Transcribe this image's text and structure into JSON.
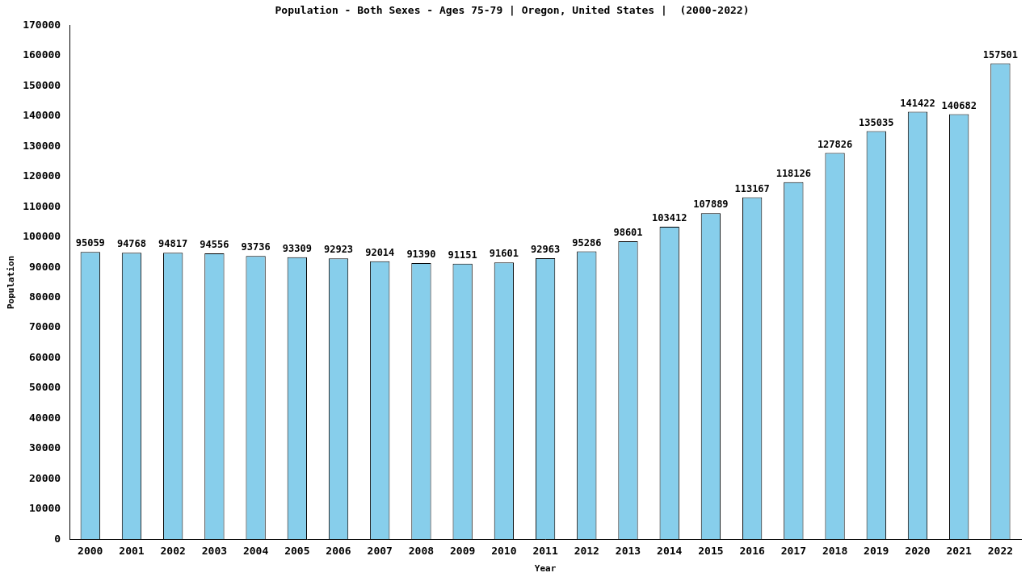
{
  "chart_data": {
    "type": "bar",
    "title": "Population - Both Sexes - Ages 75-79 | Oregon, United States |  (2000-2022)",
    "x_label": "Year",
    "y_label": "Population",
    "categories": [
      "2000",
      "2001",
      "2002",
      "2003",
      "2004",
      "2005",
      "2006",
      "2007",
      "2008",
      "2009",
      "2010",
      "2011",
      "2012",
      "2013",
      "2014",
      "2015",
      "2016",
      "2017",
      "2018",
      "2019",
      "2020",
      "2021",
      "2022"
    ],
    "values": [
      95059,
      94768,
      94817,
      94556,
      93736,
      93309,
      92923,
      92014,
      91390,
      91151,
      91601,
      92963,
      95286,
      98601,
      103412,
      107889,
      113167,
      118126,
      127826,
      135035,
      141422,
      140682,
      157501
    ],
    "color": "#87ceeb",
    "ylim": [
      0,
      170000
    ],
    "yticks": [
      0,
      10000,
      20000,
      30000,
      40000,
      50000,
      60000,
      70000,
      80000,
      90000,
      100000,
      110000,
      120000,
      130000,
      140000,
      150000,
      160000,
      170000
    ],
    "grid": false,
    "data_labels": true
  }
}
